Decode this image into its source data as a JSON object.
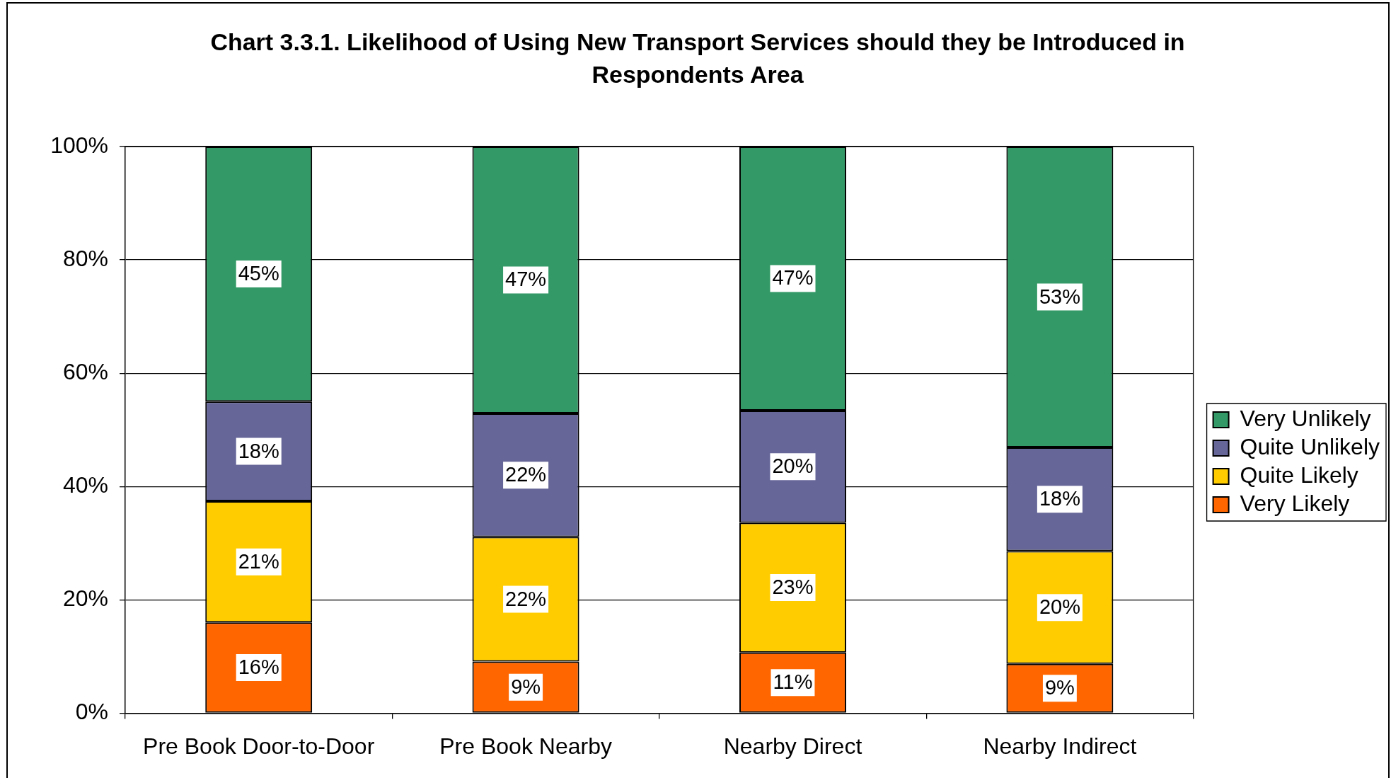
{
  "chart_data": {
    "type": "bar",
    "stacked": true,
    "title": "Chart 3.3.1. Likelihood of Using New Transport Services should they be Introduced in Respondents Area",
    "categories": [
      "Pre Book Door-to-Door",
      "Pre Book Nearby",
      "Nearby Direct",
      "Nearby Indirect"
    ],
    "series": [
      {
        "name": "Very Likely",
        "color": "#ff6600",
        "values": [
          16.0,
          9.1,
          10.7,
          8.7
        ],
        "value_labels": [
          "16%",
          "9%",
          "11%",
          "9%"
        ]
      },
      {
        "name": "Quite Likely",
        "color": "#ffcc00",
        "values": [
          21.4,
          22.0,
          22.9,
          19.9
        ],
        "value_labels": [
          "21%",
          "22%",
          "23%",
          "20%"
        ]
      },
      {
        "name": "Quite Unlikely",
        "color": "#666699",
        "values": [
          17.6,
          21.8,
          19.8,
          18.3
        ],
        "value_labels": [
          "18%",
          "22%",
          "20%",
          "18%"
        ]
      },
      {
        "name": "Very Unlikely",
        "color": "#339966",
        "values": [
          45.0,
          47.1,
          46.6,
          53.1
        ],
        "value_labels": [
          "45%",
          "47%",
          "47%",
          "53%"
        ]
      }
    ],
    "ylim": [
      0,
      100
    ],
    "yticks": [
      {
        "value": 0,
        "label": "0%"
      },
      {
        "value": 20,
        "label": "20%"
      },
      {
        "value": 40,
        "label": "40%"
      },
      {
        "value": 60,
        "label": "60%"
      },
      {
        "value": 80,
        "label": "80%"
      },
      {
        "value": 100,
        "label": "100%"
      }
    ],
    "grid": "y",
    "legend": "right"
  }
}
